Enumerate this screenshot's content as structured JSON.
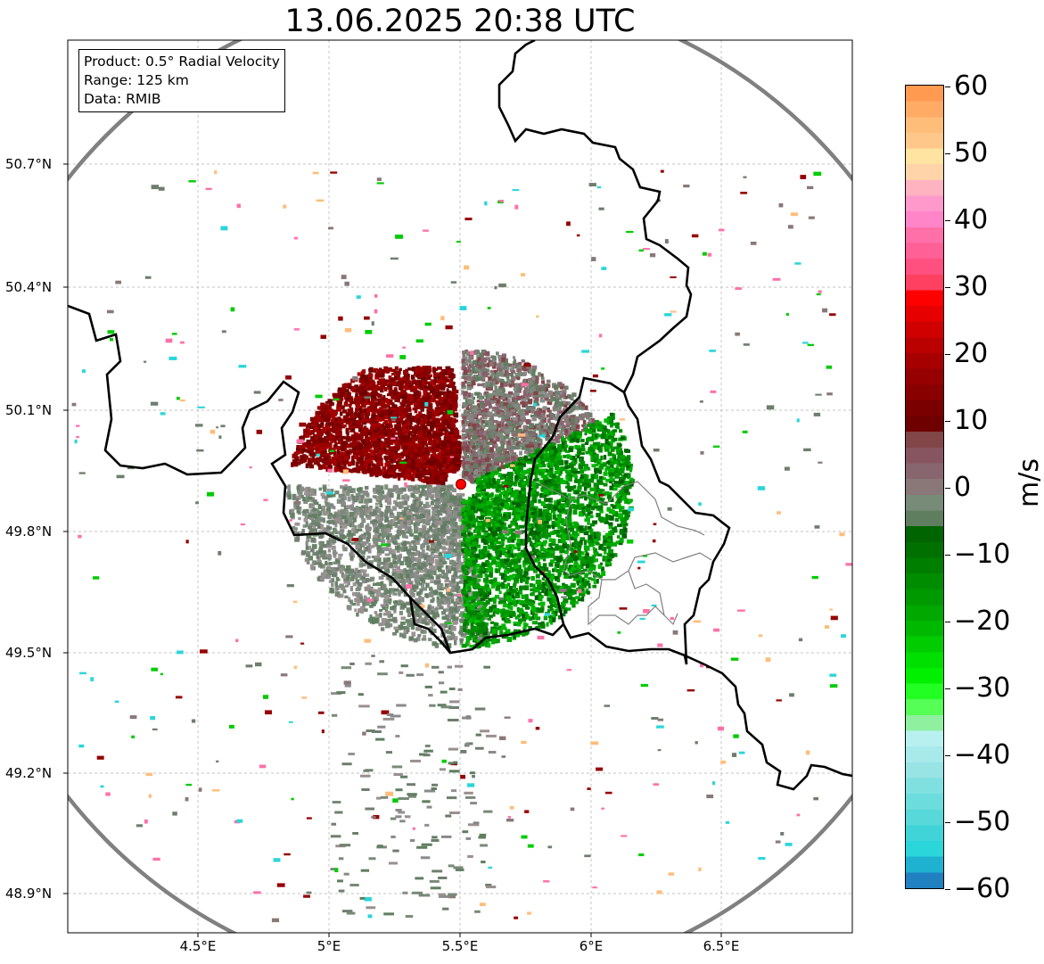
{
  "title": "13.06.2025 20:38 UTC",
  "info": {
    "product": "Product: 0.5° Radial Velocity",
    "range": "Range: 125 km",
    "source": "Data: RMIB"
  },
  "lat_ticks": [
    "50.7°N",
    "50.4°N",
    "50.1°N",
    "49.8°N",
    "49.5°N",
    "49.2°N",
    "48.9°N"
  ],
  "lon_ticks": [
    "4.5°E",
    "5°E",
    "5.5°E",
    "6°E",
    "6.5°E"
  ],
  "colorbar": {
    "label": "m/s",
    "ticks": [
      "60",
      "50",
      "40",
      "30",
      "20",
      "10",
      "0",
      "−10",
      "−20",
      "−30",
      "−40",
      "−50",
      "−60"
    ],
    "range": [
      -60,
      60
    ],
    "colors_top_to_bottom": [
      "#ff9a50",
      "#ffab65",
      "#ffbd7a",
      "#ffc88a",
      "#ffe3a0",
      "#ffd4a8",
      "#ffb3c0",
      "#ff99cc",
      "#ff85c8",
      "#ff70a8",
      "#ff6095",
      "#ff5080",
      "#ff4060",
      "#ff0000",
      "#e60000",
      "#d00000",
      "#bb0000",
      "#a60000",
      "#960000",
      "#880000",
      "#7a0000",
      "#6e0000",
      "#824548",
      "#875560",
      "#886670",
      "#8a7878",
      "#788a78",
      "#5f7e5f",
      "#006400",
      "#007000",
      "#007e00",
      "#008c00",
      "#009900",
      "#00a800",
      "#00b800",
      "#00cc00",
      "#00e000",
      "#00f000",
      "#22ff22",
      "#55ff55",
      "#8ff0a0",
      "#b8f0f0",
      "#a8eaea",
      "#98e4e4",
      "#80e0e0",
      "#6ddcdc",
      "#58d8d8",
      "#40d4d8",
      "#2ad6da",
      "#1eb2d0",
      "#2080c0"
    ]
  },
  "map": {
    "radar_site": {
      "lon": 5.5,
      "lat": 49.91
    },
    "extent": {
      "lon": [
        4.02,
        7.02
      ],
      "lat": [
        48.8,
        51.0
      ]
    },
    "range_ring_color": "#808080",
    "border_color": "#000000"
  }
}
